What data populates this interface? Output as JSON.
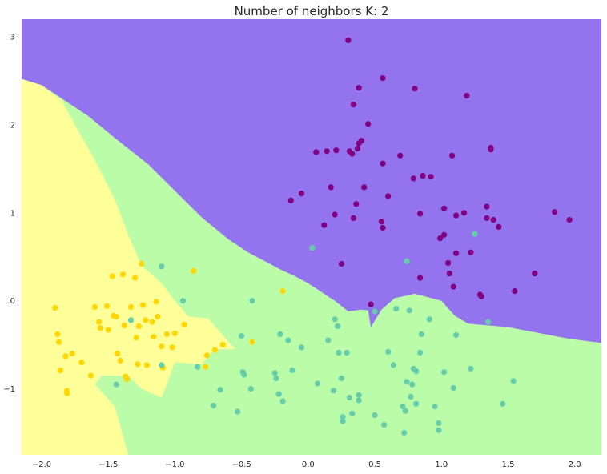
{
  "chart_data": {
    "type": "scatter",
    "title": "Number of neighbors K: 2",
    "xlabel": "",
    "ylabel": "",
    "xlim": [
      -2.15,
      2.2
    ],
    "ylim": [
      -1.75,
      3.2
    ],
    "grid": false,
    "xticks": [
      -2.0,
      -1.5,
      -1.0,
      -0.5,
      0.0,
      0.5,
      1.0,
      1.5,
      2.0
    ],
    "xtick_labels": [
      "−2.0",
      "−1.5",
      "−1.0",
      "−0.5",
      "0.0",
      "0.5",
      "1.0",
      "1.5",
      "2.0"
    ],
    "yticks": [
      -1,
      0,
      1,
      2,
      3
    ],
    "ytick_labels": [
      "−1",
      "0",
      "1",
      "2",
      "3"
    ],
    "colors": {
      "region_yellow": "#ffff99",
      "region_green": "#bbfca8",
      "region_purple": "#9373ee",
      "point_yellow": "#ffd700",
      "point_teal": "#66cdaa",
      "point_purple": "#800080"
    },
    "regions": [
      {
        "class": "purple",
        "color": "#9373ee",
        "polygon": [
          [
            -2.15,
            3.2
          ],
          [
            2.2,
            3.2
          ],
          [
            2.2,
            -0.48
          ],
          [
            1.95,
            -0.43
          ],
          [
            1.5,
            -0.3
          ],
          [
            1.2,
            -0.26
          ],
          [
            1.1,
            -0.17
          ],
          [
            1.0,
            0.0
          ],
          [
            0.8,
            0.08
          ],
          [
            0.65,
            0.03
          ],
          [
            0.55,
            -0.1
          ],
          [
            0.47,
            -0.3
          ],
          [
            0.45,
            -0.11
          ],
          [
            0.4,
            -0.1
          ],
          [
            0.3,
            -0.12
          ],
          [
            0.2,
            0.0
          ],
          [
            0.1,
            0.1
          ],
          [
            0.0,
            0.2
          ],
          [
            -0.1,
            0.28
          ],
          [
            -0.2,
            0.35
          ],
          [
            -0.45,
            0.55
          ],
          [
            -0.6,
            0.7
          ],
          [
            -0.8,
            0.95
          ],
          [
            -1.0,
            1.25
          ],
          [
            -1.2,
            1.55
          ],
          [
            -1.45,
            1.85
          ],
          [
            -1.65,
            2.1
          ],
          [
            -1.85,
            2.3
          ],
          [
            -2.0,
            2.45
          ],
          [
            -2.15,
            2.52
          ]
        ]
      },
      {
        "class": "yellow",
        "color": "#ffff99",
        "polygon": [
          [
            -2.15,
            2.52
          ],
          [
            -2.0,
            2.45
          ],
          [
            -1.85,
            2.28
          ],
          [
            -1.75,
            2.0
          ],
          [
            -1.6,
            1.6
          ],
          [
            -1.45,
            1.15
          ],
          [
            -1.35,
            0.75
          ],
          [
            -1.25,
            0.4
          ],
          [
            -1.1,
            0.2
          ],
          [
            -1.0,
            0.0
          ],
          [
            -0.9,
            -0.18
          ],
          [
            -0.75,
            -0.2
          ],
          [
            -0.55,
            -0.55
          ],
          [
            -0.7,
            -0.55
          ],
          [
            -0.8,
            -0.72
          ],
          [
            -1.0,
            -0.7
          ],
          [
            -1.05,
            -0.9
          ],
          [
            -1.1,
            -1.1
          ],
          [
            -1.25,
            -1.0
          ],
          [
            -1.35,
            -0.85
          ],
          [
            -1.55,
            -0.85
          ],
          [
            -1.6,
            -0.95
          ],
          [
            -1.45,
            -1.2
          ],
          [
            -1.35,
            -1.75
          ],
          [
            -2.15,
            -1.75
          ]
        ]
      }
    ],
    "series": [
      {
        "color": "#ffd700",
        "points": [
          [
            -1.9,
            -0.08
          ],
          [
            -1.88,
            -0.38
          ],
          [
            -1.87,
            -0.47
          ],
          [
            -1.86,
            -0.79
          ],
          [
            -1.82,
            -0.63
          ],
          [
            -1.81,
            -1.02
          ],
          [
            -1.81,
            -1.05
          ],
          [
            -1.77,
            -0.6
          ],
          [
            -1.7,
            -0.7
          ],
          [
            -1.63,
            -0.85
          ],
          [
            -1.6,
            -0.07
          ],
          [
            -1.57,
            -0.24
          ],
          [
            -1.56,
            -0.31
          ],
          [
            -1.51,
            -0.06
          ],
          [
            -1.5,
            -0.33
          ],
          [
            -1.47,
            0.28
          ],
          [
            -1.46,
            -0.17
          ],
          [
            -1.44,
            -0.18
          ],
          [
            -1.43,
            -0.6
          ],
          [
            -1.41,
            -0.68
          ],
          [
            -1.39,
            0.3
          ],
          [
            -1.38,
            -0.28
          ],
          [
            -1.37,
            -0.86
          ],
          [
            -1.36,
            -0.89
          ],
          [
            -1.33,
            -0.07
          ],
          [
            -1.3,
            0.26
          ],
          [
            -1.29,
            -0.42
          ],
          [
            -1.28,
            -0.72
          ],
          [
            -1.27,
            -0.29
          ],
          [
            -1.25,
            0.42
          ],
          [
            -1.24,
            -0.05
          ],
          [
            -1.22,
            -0.22
          ],
          [
            -1.21,
            -0.73
          ],
          [
            -1.17,
            -0.24
          ],
          [
            -1.16,
            -0.41
          ],
          [
            -1.14,
            -0.01
          ],
          [
            -1.13,
            -0.18
          ],
          [
            -1.1,
            -0.52
          ],
          [
            -1.09,
            -0.76
          ],
          [
            -1.06,
            -0.38
          ],
          [
            -1.02,
            -0.53
          ],
          [
            -1.0,
            -0.37
          ],
          [
            -0.93,
            -0.27
          ],
          [
            -0.86,
            0.34
          ],
          [
            -0.77,
            -0.75
          ],
          [
            -0.76,
            -0.62
          ],
          [
            -0.7,
            -0.56
          ],
          [
            -0.64,
            -0.5
          ],
          [
            -0.42,
            -0.47
          ],
          [
            -0.19,
            0.11
          ]
        ]
      },
      {
        "color": "#66cdaa",
        "points": [
          [
            -1.44,
            -0.95
          ],
          [
            -1.33,
            -0.22
          ],
          [
            -1.1,
            0.39
          ],
          [
            -1.1,
            -0.73
          ],
          [
            -0.94,
            0.0
          ],
          [
            -0.83,
            -0.75
          ],
          [
            -0.71,
            -1.19
          ],
          [
            -0.66,
            -1.01
          ],
          [
            -0.53,
            -1.26
          ],
          [
            -0.5,
            -0.4
          ],
          [
            -0.49,
            -0.81
          ],
          [
            -0.48,
            -0.84
          ],
          [
            -0.43,
            -1.0
          ],
          [
            -0.42,
            0.0
          ],
          [
            -0.25,
            -0.82
          ],
          [
            -0.24,
            -0.88
          ],
          [
            -0.22,
            -1.06
          ],
          [
            -0.21,
            -0.38
          ],
          [
            -0.19,
            -1.14
          ],
          [
            -0.15,
            -0.45
          ],
          [
            -0.12,
            -0.79
          ],
          [
            -0.05,
            -0.53
          ],
          [
            0.03,
            0.6
          ],
          [
            0.07,
            -0.94
          ],
          [
            0.15,
            -0.45
          ],
          [
            0.19,
            -1.02
          ],
          [
            0.2,
            -0.21
          ],
          [
            0.22,
            -0.29
          ],
          [
            0.23,
            -0.59
          ],
          [
            0.25,
            -0.88
          ],
          [
            0.26,
            -1.32
          ],
          [
            0.26,
            -1.37
          ],
          [
            0.29,
            -0.59
          ],
          [
            0.31,
            -1.1
          ],
          [
            0.33,
            -1.28
          ],
          [
            0.38,
            -1.07
          ],
          [
            0.38,
            -1.13
          ],
          [
            0.5,
            -0.12
          ],
          [
            0.5,
            -1.3
          ],
          [
            0.57,
            -1.41
          ],
          [
            0.6,
            -0.58
          ],
          [
            0.64,
            -0.73
          ],
          [
            0.66,
            -0.09
          ],
          [
            0.71,
            -1.2
          ],
          [
            0.72,
            -1.5
          ],
          [
            0.73,
            -1.25
          ],
          [
            0.74,
            0.45
          ],
          [
            0.74,
            -0.92
          ],
          [
            0.76,
            -0.11
          ],
          [
            0.77,
            -1.09
          ],
          [
            0.78,
            -0.95
          ],
          [
            0.79,
            -0.77
          ],
          [
            0.81,
            -0.8
          ],
          [
            0.81,
            -1.17
          ],
          [
            0.84,
            -0.59
          ],
          [
            0.85,
            -0.38
          ],
          [
            0.91,
            -0.21
          ],
          [
            0.95,
            -1.2
          ],
          [
            0.98,
            -1.39
          ],
          [
            0.98,
            -1.47
          ],
          [
            1.02,
            -0.81
          ],
          [
            1.09,
            -0.99
          ],
          [
            1.11,
            -0.39
          ],
          [
            1.22,
            -0.77
          ],
          [
            1.25,
            0.76
          ],
          [
            1.35,
            -0.24
          ],
          [
            1.46,
            -1.17
          ],
          [
            1.54,
            -0.91
          ]
        ]
      },
      {
        "color": "#800080",
        "points": [
          [
            -0.13,
            1.14
          ],
          [
            -0.05,
            1.22
          ],
          [
            0.06,
            1.69
          ],
          [
            0.12,
            0.86
          ],
          [
            0.14,
            1.7
          ],
          [
            0.17,
            1.29
          ],
          [
            0.2,
            0.98
          ],
          [
            0.21,
            1.71
          ],
          [
            0.25,
            0.42
          ],
          [
            0.3,
            2.96
          ],
          [
            0.31,
            1.7
          ],
          [
            0.33,
            1.67
          ],
          [
            0.34,
            0.94
          ],
          [
            0.34,
            2.23
          ],
          [
            0.36,
            1.1
          ],
          [
            0.37,
            1.73
          ],
          [
            0.38,
            2.42
          ],
          [
            0.38,
            1.79
          ],
          [
            0.4,
            1.82
          ],
          [
            0.42,
            1.29
          ],
          [
            0.45,
            2.01
          ],
          [
            0.47,
            -0.04
          ],
          [
            0.55,
            0.9
          ],
          [
            0.56,
            0.83
          ],
          [
            0.56,
            1.56
          ],
          [
            0.56,
            2.53
          ],
          [
            0.6,
            1.19
          ],
          [
            0.69,
            1.65
          ],
          [
            0.79,
            1.39
          ],
          [
            0.8,
            2.41
          ],
          [
            0.84,
            0.26
          ],
          [
            0.84,
            0.99
          ],
          [
            0.86,
            1.42
          ],
          [
            0.92,
            1.41
          ],
          [
            0.99,
            0.71
          ],
          [
            1.02,
            0.75
          ],
          [
            1.02,
            1.05
          ],
          [
            1.05,
            0.43
          ],
          [
            1.06,
            0.31
          ],
          [
            1.08,
            1.65
          ],
          [
            1.09,
            0.16
          ],
          [
            1.11,
            0.97
          ],
          [
            1.11,
            0.54
          ],
          [
            1.17,
            1.0
          ],
          [
            1.19,
            2.33
          ],
          [
            1.22,
            0.55
          ],
          [
            1.29,
            0.07
          ],
          [
            1.3,
            0.05
          ],
          [
            1.34,
            0.94
          ],
          [
            1.34,
            1.07
          ],
          [
            1.37,
            1.72
          ],
          [
            1.37,
            1.74
          ],
          [
            1.39,
            0.92
          ],
          [
            1.43,
            0.84
          ],
          [
            1.55,
            0.11
          ],
          [
            1.7,
            0.31
          ],
          [
            1.85,
            1.01
          ],
          [
            1.96,
            0.92
          ]
        ]
      }
    ]
  }
}
